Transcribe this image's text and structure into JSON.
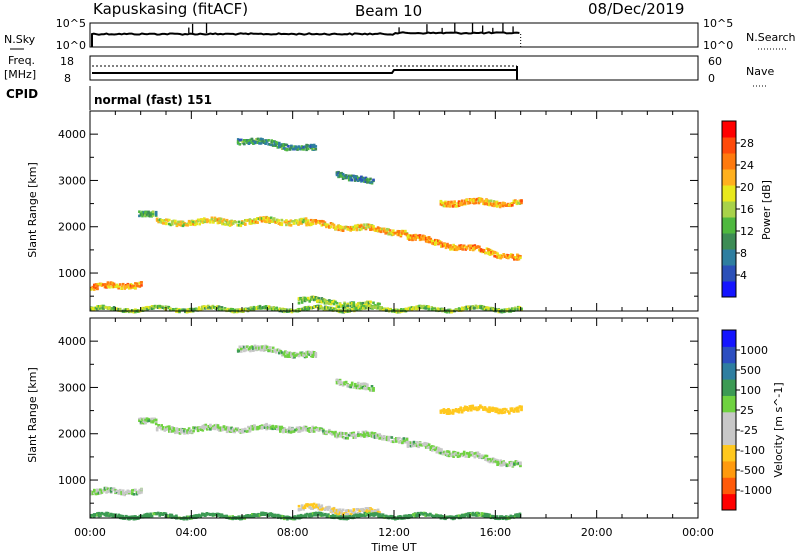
{
  "header": {
    "station": "Kapuskasing (fitACF)",
    "beam": "Beam 10",
    "date": "08/Dec/2019"
  },
  "noise_panel": {
    "left_label": "N.Sky",
    "right_label": "N.Search",
    "left_ticks": [
      "10^5",
      "10^0"
    ],
    "right_ticks": [
      "10^5",
      "10^0"
    ]
  },
  "freq_panel": {
    "left_label_1": "Freq.",
    "left_label_2": "[MHz]",
    "right_label": "Nave",
    "left_ticks": [
      "18",
      "8"
    ],
    "right_ticks": [
      "60",
      "0"
    ]
  },
  "cpid": {
    "label": "CPID",
    "value": "normal (fast) 151"
  },
  "x_axis": {
    "label": "Time UT",
    "ticks": [
      "00:00",
      "04:00",
      "08:00",
      "12:00",
      "16:00",
      "20:00",
      "00:00"
    ],
    "range_hours": [
      0,
      24
    ]
  },
  "colors": {
    "power_scale": [
      "#1515ff",
      "#2b50b8",
      "#2e7ea0",
      "#3d8c55",
      "#4fb83f",
      "#a8d24a",
      "#e8e81c",
      "#ffb01e",
      "#ff7a0e",
      "#ff4a0a",
      "#ff0000"
    ],
    "velocity_scale": [
      "#ff0000",
      "#ff5a0a",
      "#ff9a0e",
      "#ffc81e",
      "#c8c8c8",
      "#c8c8c8",
      "#6fd240",
      "#3c9a54",
      "#2e7ea0",
      "#2c4ec0",
      "#1515ff"
    ],
    "line": "#000000",
    "background": "#ffffff"
  },
  "chart_data": [
    {
      "type": "heatmap",
      "title": "Power",
      "ylabel": "Slant Range [km]",
      "xlabel": "",
      "xlim": [
        0,
        24
      ],
      "ylim": [
        180,
        4500
      ],
      "y_ticks": [
        "1000",
        "2000",
        "3000",
        "4000"
      ],
      "colorbar": {
        "label": "Power [dB]",
        "ticks": [
          "4",
          "8",
          "12",
          "16",
          "20",
          "24",
          "28"
        ],
        "range": [
          0,
          30
        ]
      },
      "echo_bands": [
        {
          "t": [
            0.0,
            2.0
          ],
          "r_start": 700,
          "r_end": 800,
          "level": 22
        },
        {
          "t": [
            1.9,
            2.6
          ],
          "r_start": 2320,
          "r_end": 2250,
          "level": 10
        },
        {
          "t": [
            2.6,
            8.5
          ],
          "r_start": 2120,
          "r_end": 2150,
          "level": 18
        },
        {
          "t": [
            8.5,
            12.5
          ],
          "r_start": 2100,
          "r_end": 1900,
          "level": 20
        },
        {
          "t": [
            12.5,
            17.0
          ],
          "r_start": 1800,
          "r_end": 1350,
          "level": 22
        },
        {
          "t": [
            13.8,
            17.0
          ],
          "r_start": 2550,
          "r_end": 2550,
          "level": 21
        },
        {
          "t": [
            5.8,
            8.9
          ],
          "r_start": 3900,
          "r_end": 3700,
          "level": 9
        },
        {
          "t": [
            9.7,
            11.2
          ],
          "r_start": 3200,
          "r_end": 2950,
          "level": 8
        },
        {
          "t": [
            8.2,
            11.5
          ],
          "r_start": 450,
          "r_end": 300,
          "level": 14
        },
        {
          "t": [
            0.0,
            17.0
          ],
          "r_start": 250,
          "r_end": 250,
          "level": 14
        }
      ]
    },
    {
      "type": "heatmap",
      "title": "Velocity",
      "ylabel": "Slant Range [km]",
      "xlabel": "Time UT",
      "xlim": [
        0,
        24
      ],
      "ylim": [
        180,
        4500
      ],
      "y_ticks": [
        "1000",
        "2000",
        "3000",
        "4000"
      ],
      "colorbar": {
        "label": "Velocity [m s^-1]",
        "ticks": [
          "-1000",
          "-500",
          "-100",
          "-25",
          "25",
          "100",
          "500",
          "1000"
        ]
      },
      "echo_bands": [
        {
          "t": [
            0.0,
            2.0
          ],
          "r_start": 750,
          "r_end": 800,
          "velocity": 0
        },
        {
          "t": [
            1.9,
            2.6
          ],
          "r_start": 2320,
          "r_end": 2250,
          "velocity": 0
        },
        {
          "t": [
            2.6,
            8.5
          ],
          "r_start": 2120,
          "r_end": 2150,
          "velocity": 0
        },
        {
          "t": [
            8.5,
            12.5
          ],
          "r_start": 2100,
          "r_end": 1900,
          "velocity": 0
        },
        {
          "t": [
            12.5,
            17.0
          ],
          "r_start": 1800,
          "r_end": 1350,
          "velocity": 0
        },
        {
          "t": [
            13.8,
            17.0
          ],
          "r_start": 2550,
          "r_end": 2550,
          "velocity": -300
        },
        {
          "t": [
            5.8,
            8.9
          ],
          "r_start": 3900,
          "r_end": 3700,
          "velocity": 0
        },
        {
          "t": [
            9.7,
            11.2
          ],
          "r_start": 3200,
          "r_end": 2950,
          "velocity": 0
        },
        {
          "t": [
            8.2,
            11.5
          ],
          "r_start": 450,
          "r_end": 300,
          "velocity": -100
        },
        {
          "t": [
            0.0,
            17.0
          ],
          "r_start": 250,
          "r_end": 250,
          "velocity": 50
        }
      ]
    }
  ]
}
